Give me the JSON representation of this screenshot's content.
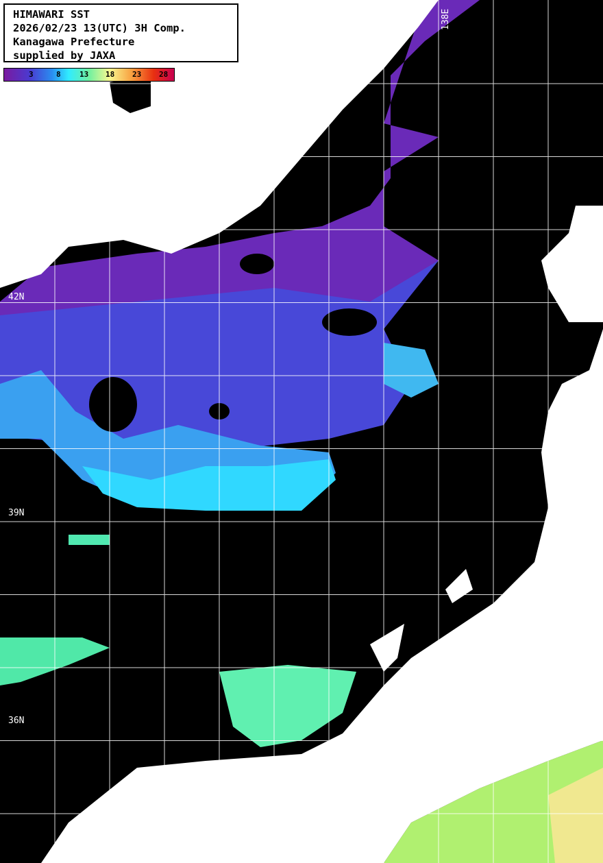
{
  "title_box": {
    "lines": [
      "HIMAWARI SST",
      "2026/02/23 13(UTC) 3H Comp.",
      "Kanagawa Prefecture",
      "supplied by JAXA"
    ]
  },
  "colorbar": {
    "ticks": [
      "3",
      "8",
      "13",
      "18",
      "23",
      "28"
    ],
    "colors": [
      "#7a1aa0",
      "#4a3ad0",
      "#2a8cf0",
      "#30ecff",
      "#70f0a0",
      "#f8f890",
      "#f8a040",
      "#e83010",
      "#c80050"
    ]
  },
  "grid_labels": {
    "lat": [
      "42N",
      "39N",
      "36N"
    ],
    "lon": [
      "138E"
    ]
  },
  "colors": {
    "land": "#ffffff",
    "cloud_or_nodata": "#000000",
    "grid": "#ffffff"
  }
}
